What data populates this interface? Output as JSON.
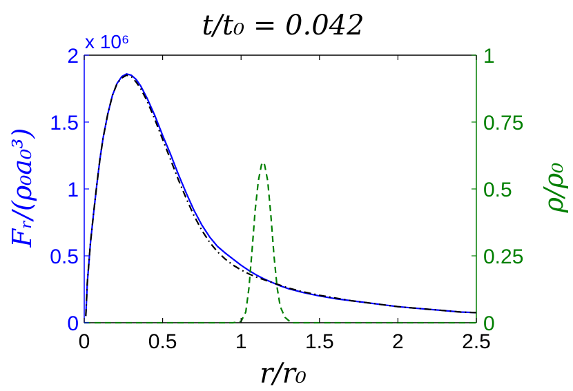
{
  "chart_data": {
    "type": "line",
    "title": "t/t₀ = 0.042",
    "xlabel": "r/r₀",
    "ylabel_left": "Fᵣ/(ρ₀a₀³)",
    "ylabel_right": "ρ/ρ₀",
    "exponent_label": "x 10⁶",
    "xlim": [
      0,
      2.5
    ],
    "ylim_left": [
      0,
      2
    ],
    "ylim_right": [
      0,
      1
    ],
    "x_ticks": [
      "0",
      "0.5",
      "1",
      "1.5",
      "2",
      "2.5"
    ],
    "y_ticks_left": [
      "0",
      "0.5",
      "1",
      "1.5",
      "2"
    ],
    "y_ticks_right": [
      "0",
      "0.25",
      "0.5",
      "0.75",
      "1"
    ],
    "x_tick_values": [
      0,
      0.5,
      1,
      1.5,
      2,
      2.5
    ],
    "y_tick_values_left": [
      0,
      0.5,
      1,
      1.5,
      2
    ],
    "y_tick_values_right": [
      0,
      0.25,
      0.5,
      0.75,
      1
    ],
    "grid": false,
    "colors": {
      "left_axis": "#0000ff",
      "right_axis": "#007f00",
      "black": "#000000"
    },
    "series": [
      {
        "axis": "left",
        "color": "#0000ff",
        "style": "solid",
        "x": [
          0.01,
          0.02,
          0.04,
          0.06,
          0.08,
          0.1,
          0.12,
          0.15,
          0.18,
          0.21,
          0.24,
          0.27,
          0.3,
          0.33,
          0.36,
          0.4,
          0.45,
          0.5,
          0.55,
          0.6,
          0.65,
          0.7,
          0.75,
          0.8,
          0.85,
          0.9,
          0.95,
          1.0,
          1.05,
          1.1,
          1.15,
          1.2,
          1.25,
          1.3,
          1.4,
          1.5,
          1.6,
          1.7,
          1.8,
          1.9,
          2.0,
          2.1,
          2.2,
          2.3,
          2.4,
          2.5
        ],
        "y": [
          0.05,
          0.3,
          0.6,
          0.82,
          1.03,
          1.22,
          1.38,
          1.56,
          1.7,
          1.79,
          1.84,
          1.86,
          1.85,
          1.82,
          1.77,
          1.68,
          1.55,
          1.4,
          1.26,
          1.11,
          0.97,
          0.84,
          0.73,
          0.64,
          0.57,
          0.52,
          0.475,
          0.43,
          0.39,
          0.355,
          0.325,
          0.3,
          0.275,
          0.255,
          0.225,
          0.2,
          0.18,
          0.165,
          0.15,
          0.135,
          0.12,
          0.11,
          0.1,
          0.09,
          0.08,
          0.075
        ]
      },
      {
        "axis": "left",
        "color": "#000000",
        "style": "dashdot",
        "x": [
          0.01,
          0.02,
          0.04,
          0.06,
          0.08,
          0.1,
          0.12,
          0.15,
          0.18,
          0.21,
          0.24,
          0.27,
          0.3,
          0.33,
          0.36,
          0.4,
          0.45,
          0.5,
          0.55,
          0.6,
          0.65,
          0.7,
          0.75,
          0.8,
          0.85,
          0.9,
          0.95,
          1.0,
          1.05,
          1.1,
          1.15,
          1.2,
          1.25,
          1.3,
          1.4,
          1.5,
          1.6,
          1.7,
          1.8,
          1.9,
          2.0,
          2.1,
          2.2,
          2.3,
          2.4,
          2.5
        ],
        "y": [
          0.05,
          0.3,
          0.6,
          0.82,
          1.03,
          1.22,
          1.38,
          1.56,
          1.7,
          1.79,
          1.83,
          1.85,
          1.84,
          1.8,
          1.75,
          1.66,
          1.52,
          1.37,
          1.22,
          1.07,
          0.93,
          0.8,
          0.69,
          0.6,
          0.53,
          0.475,
          0.43,
          0.395,
          0.365,
          0.34,
          0.32,
          0.3,
          0.28,
          0.26,
          0.23,
          0.205,
          0.185,
          0.165,
          0.15,
          0.135,
          0.12,
          0.11,
          0.1,
          0.09,
          0.08,
          0.075
        ]
      },
      {
        "axis": "right",
        "color": "#007f00",
        "style": "dashed",
        "x": [
          0,
          0.95,
          1.0,
          1.03,
          1.05,
          1.07,
          1.09,
          1.11,
          1.13,
          1.14,
          1.15,
          1.17,
          1.19,
          1.21,
          1.23,
          1.25,
          1.28,
          1.32,
          2.5
        ],
        "y": [
          0,
          0,
          0.005,
          0.04,
          0.13,
          0.27,
          0.42,
          0.53,
          0.59,
          0.6,
          0.59,
          0.53,
          0.4,
          0.25,
          0.13,
          0.06,
          0.02,
          0,
          0
        ]
      }
    ]
  }
}
